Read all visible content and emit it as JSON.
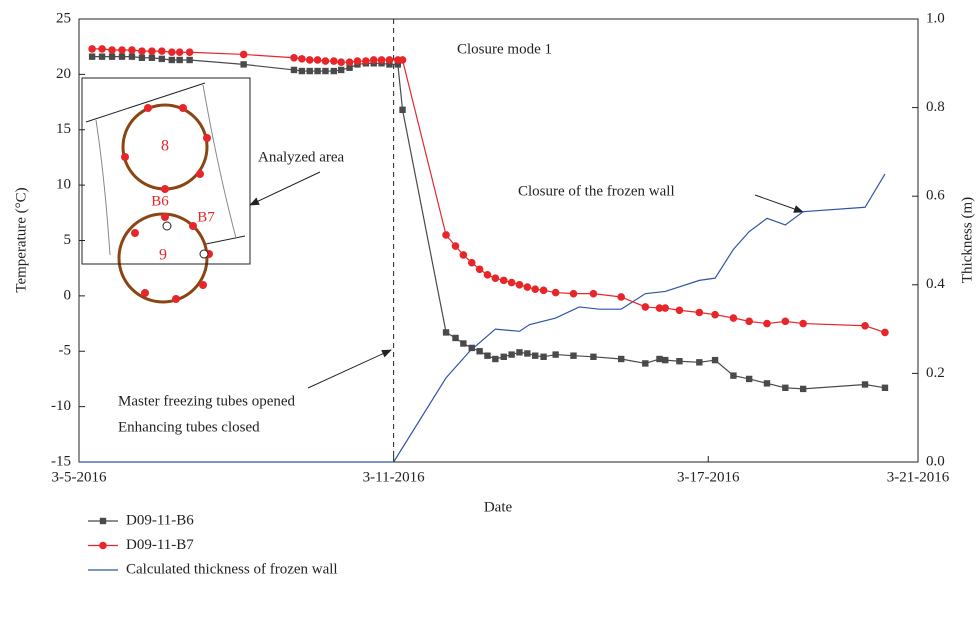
{
  "chart_data": {
    "type": "line",
    "x_label": "Date",
    "y_label": "Temperature (°C)",
    "y2_label": "Thickness (m)",
    "xlim": [
      5,
      21
    ],
    "xticks": [
      {
        "value": 5,
        "label": "3-5-2016"
      },
      {
        "value": 11,
        "label": "3-11-2016"
      },
      {
        "value": 17,
        "label": "3-17-2016"
      },
      {
        "value": 21,
        "label": "3-21-2016"
      }
    ],
    "ylim": [
      -15,
      25
    ],
    "yticks": [
      -15,
      -10,
      -5,
      0,
      5,
      10,
      15,
      20,
      25
    ],
    "y2lim": [
      0,
      1
    ],
    "y2ticks": [
      {
        "value": 0,
        "label": "0.0"
      },
      0.2,
      0.4,
      0.6,
      0.8,
      {
        "value": 1,
        "label": "1.0"
      }
    ],
    "vline": 11,
    "x": [
      5.25,
      5.44,
      5.63,
      5.82,
      6.01,
      6.2,
      6.39,
      6.58,
      6.77,
      6.92,
      7.11,
      8.14,
      9.1,
      9.25,
      9.4,
      9.55,
      9.7,
      9.86,
      10.0,
      10.16,
      10.31,
      10.47,
      10.62,
      10.77,
      10.92,
      11.08,
      11.17,
      12.0,
      12.18,
      12.33,
      12.49,
      12.64,
      12.79,
      12.94,
      13.1,
      13.25,
      13.4,
      13.55,
      13.7,
      13.86,
      14.09,
      14.43,
      14.81,
      15.34,
      15.8,
      16.07,
      16.18,
      16.45,
      16.83,
      17.13,
      17.48,
      17.78,
      18.12,
      18.47,
      18.81,
      19.99,
      20.37
    ],
    "series": [
      {
        "name": "D09-11-B6",
        "color": "#4a4a4a",
        "marker": "square",
        "values": [
          21.6,
          21.6,
          21.6,
          21.6,
          21.6,
          21.5,
          21.5,
          21.4,
          21.3,
          21.3,
          21.3,
          20.9,
          20.4,
          20.3,
          20.3,
          20.3,
          20.3,
          20.3,
          20.4,
          20.6,
          20.9,
          21.0,
          21.0,
          21.0,
          20.9,
          20.9,
          16.8,
          -3.3,
          -3.8,
          -4.3,
          -4.7,
          -5.0,
          -5.4,
          -5.7,
          -5.5,
          -5.3,
          -5.1,
          -5.2,
          -5.4,
          -5.5,
          -5.3,
          -5.4,
          -5.5,
          -5.7,
          -6.1,
          -5.7,
          -5.8,
          -5.9,
          -6.0,
          -5.8,
          -7.2,
          -7.5,
          -7.9,
          -8.3,
          -8.4,
          -8.0,
          -8.3
        ]
      },
      {
        "name": "D09-11-B7",
        "color": "#e8262a",
        "marker": "circle",
        "values": [
          22.3,
          22.3,
          22.2,
          22.2,
          22.2,
          22.1,
          22.1,
          22.1,
          22.0,
          22.0,
          22.0,
          21.8,
          21.5,
          21.4,
          21.3,
          21.3,
          21.2,
          21.2,
          21.1,
          21.1,
          21.2,
          21.2,
          21.3,
          21.3,
          21.3,
          21.3,
          21.3,
          5.5,
          4.5,
          3.7,
          3.0,
          2.4,
          1.9,
          1.6,
          1.4,
          1.2,
          1.0,
          0.8,
          0.6,
          0.5,
          0.3,
          0.2,
          0.2,
          -0.1,
          -1.0,
          -1.1,
          -1.1,
          -1.3,
          -1.5,
          -1.7,
          -2.0,
          -2.3,
          -2.5,
          -2.3,
          -2.5,
          -2.7,
          -3.3
        ]
      }
    ],
    "thickness": {
      "name": "Calculated thickness of frozen wall",
      "color": "#2f54a8",
      "axis": "y2",
      "x": [
        5,
        11,
        12,
        12.45,
        12.94,
        13.4,
        13.59,
        14.09,
        14.54,
        14.92,
        15.34,
        15.8,
        16.18,
        16.83,
        17.13,
        17.48,
        17.78,
        18.12,
        18.47,
        18.81,
        19.99,
        20.37
      ],
      "values": [
        0,
        0,
        0.19,
        0.25,
        0.3,
        0.295,
        0.31,
        0.325,
        0.35,
        0.345,
        0.345,
        0.38,
        0.385,
        0.41,
        0.415,
        0.48,
        0.52,
        0.55,
        0.535,
        0.565,
        0.575,
        0.65
      ]
    },
    "annotations": [
      "Closure mode 1",
      "Analyzed area",
      "Closure of the frozen wall",
      "Master freezing tubes opened",
      "Enhancing tubes closed"
    ],
    "inset_labels": [
      "8",
      "9",
      "B6",
      "B7"
    ]
  }
}
